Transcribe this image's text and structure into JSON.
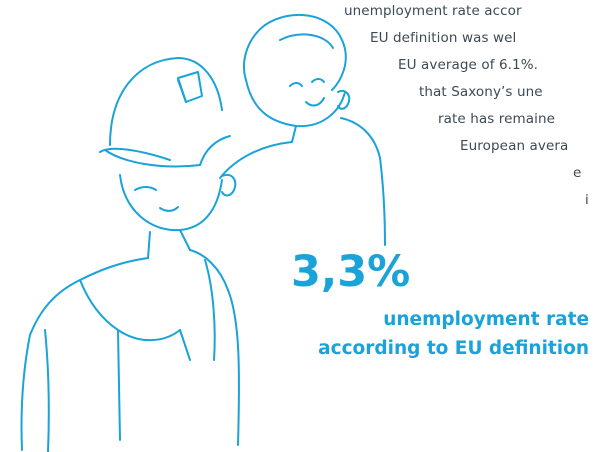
{
  "body_text_lines": [
    "unemployment rate accor",
    "EU definition was wel",
    "EU average of 6.1%.",
    "that Saxony’s une",
    "rate has remaine",
    "European avera",
    "e",
    "i"
  ],
  "stat": {
    "value": "3,3%",
    "label_line1": "unemployment rate",
    "label_line2": "according to EU definition"
  },
  "colors": {
    "accent": "#1aa3d9",
    "text": "#3c4a55",
    "background": "#ffffff"
  },
  "icons": [
    "worker-hard-hat-illustration",
    "colleague-illustration"
  ]
}
